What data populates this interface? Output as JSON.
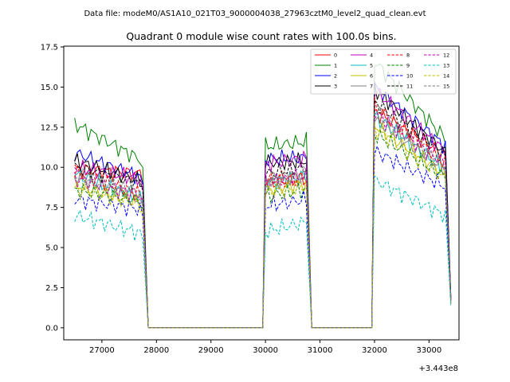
{
  "chart_data": {
    "type": "line",
    "suptitle": "Data file: modeM0/AS1A10_021T03_9000004038_27963cztM0_level2_quad_clean.evt",
    "title": "Quadrant 0 module wise count rates with 100.0s bins.",
    "xlabel": "",
    "ylabel": "",
    "x_offset_label": "+3.443e8",
    "xlim": [
      26300,
      33550
    ],
    "ylim": [
      -0.75,
      17.55
    ],
    "x_tick_labels": [
      "27000",
      "28000",
      "29000",
      "30000",
      "31000",
      "32000",
      "33000"
    ],
    "y_tick_labels": [
      "0.0",
      "2.5",
      "5.0",
      "7.5",
      "10.0",
      "12.5",
      "15.0",
      "17.5"
    ],
    "legend_location": "top-right",
    "bins": {
      "segment1_start": 26500,
      "segment1_end": 27700,
      "gap1_end": 30000,
      "segment2_start": 30000,
      "segment2_end": 30750,
      "gap2_end": 32000,
      "segment3_start": 32000,
      "segment3_end": 33300,
      "tail_x": 33400,
      "step": 50
    },
    "series": [
      {
        "name": "0",
        "color": "#ff0000",
        "dashed": false,
        "s1": [
          9.9,
          9.6
        ],
        "s1_drop": 9.0,
        "s2": [
          9.0,
          9.3
        ],
        "s3": [
          13.5,
          10.8
        ],
        "tail": 1.8
      },
      {
        "name": "1",
        "color": "#008000",
        "dashed": false,
        "s1": [
          12.7,
          10.5
        ],
        "s1_drop": 10.0,
        "s2": [
          11.3,
          11.6
        ],
        "s3": [
          16.6,
          11.8
        ],
        "tail": 2.0
      },
      {
        "name": "2",
        "color": "#0000ff",
        "dashed": false,
        "s1": [
          10.9,
          9.4
        ],
        "s1_drop": 9.0,
        "s2": [
          10.5,
          10.6
        ],
        "s3": [
          15.0,
          11.3
        ],
        "tail": 1.9
      },
      {
        "name": "3",
        "color": "#000000",
        "dashed": false,
        "s1": [
          10.4,
          9.2
        ],
        "s1_drop": 8.8,
        "s2": [
          10.3,
          10.4
        ],
        "s3": [
          14.9,
          10.9
        ],
        "tail": 1.8
      },
      {
        "name": "4",
        "color": "#bf00bf",
        "dashed": false,
        "s1": [
          10.0,
          9.3
        ],
        "s1_drop": 8.9,
        "s2": [
          10.2,
          10.6
        ],
        "s3": [
          14.8,
          11.0
        ],
        "tail": 1.8
      },
      {
        "name": "5",
        "color": "#00bfbf",
        "dashed": false,
        "s1": [
          9.6,
          8.0
        ],
        "s1_drop": 7.6,
        "s2": [
          9.0,
          9.5
        ],
        "s3": [
          13.2,
          9.9
        ],
        "tail": 1.6
      },
      {
        "name": "6",
        "color": "#bfbf00",
        "dashed": false,
        "s1": [
          8.9,
          7.8
        ],
        "s1_drop": 7.4,
        "s2": [
          8.6,
          9.0
        ],
        "s3": [
          12.6,
          9.6
        ],
        "tail": 1.6
      },
      {
        "name": "7",
        "color": "#808080",
        "dashed": false,
        "s1": [
          9.4,
          8.0
        ],
        "s1_drop": 7.6,
        "s2": [
          9.1,
          9.3
        ],
        "s3": [
          13.0,
          9.8
        ],
        "tail": 1.6
      },
      {
        "name": "8",
        "color": "#ff0000",
        "dashed": true,
        "s1": [
          9.7,
          8.3
        ],
        "s1_drop": 7.9,
        "s2": [
          9.2,
          9.4
        ],
        "s3": [
          13.8,
          10.2
        ],
        "tail": 1.7
      },
      {
        "name": "9",
        "color": "#008000",
        "dashed": true,
        "s1": [
          8.6,
          7.9
        ],
        "s1_drop": 7.5,
        "s2": [
          8.2,
          8.6
        ],
        "s3": [
          12.1,
          9.4
        ],
        "tail": 1.5
      },
      {
        "name": "10",
        "color": "#0000ff",
        "dashed": true,
        "s1": [
          8.0,
          7.4
        ],
        "s1_drop": 6.9,
        "s2": [
          7.6,
          8.0
        ],
        "s3": [
          11.0,
          8.8
        ],
        "tail": 1.5
      },
      {
        "name": "11",
        "color": "#000000",
        "dashed": true,
        "s1": [
          10.0,
          9.0
        ],
        "s1_drop": 8.5,
        "s2": [
          9.6,
          10.0
        ],
        "s3": [
          14.1,
          10.7
        ],
        "tail": 1.8
      },
      {
        "name": "12",
        "color": "#bf00bf",
        "dashed": true,
        "s1": [
          9.3,
          8.3
        ],
        "s1_drop": 7.9,
        "s2": [
          9.0,
          9.5
        ],
        "s3": [
          13.4,
          10.2
        ],
        "tail": 1.7
      },
      {
        "name": "13",
        "color": "#00bfbf",
        "dashed": true,
        "s1": [
          7.0,
          5.9
        ],
        "s1_drop": 5.5,
        "s2": [
          6.0,
          6.6
        ],
        "s3": [
          9.2,
          7.0
        ],
        "tail": 1.4
      },
      {
        "name": "14",
        "color": "#bfbf00",
        "dashed": true,
        "s1": [
          8.7,
          7.7
        ],
        "s1_drop": 7.3,
        "s2": [
          8.4,
          8.8
        ],
        "s3": [
          12.4,
          9.3
        ],
        "tail": 1.6
      },
      {
        "name": "15",
        "color": "#808080",
        "dashed": true,
        "s1": [
          9.5,
          8.4
        ],
        "s1_drop": 8.0,
        "s2": [
          9.2,
          9.6
        ],
        "s3": [
          13.6,
          10.0
        ],
        "tail": 1.7
      }
    ]
  }
}
